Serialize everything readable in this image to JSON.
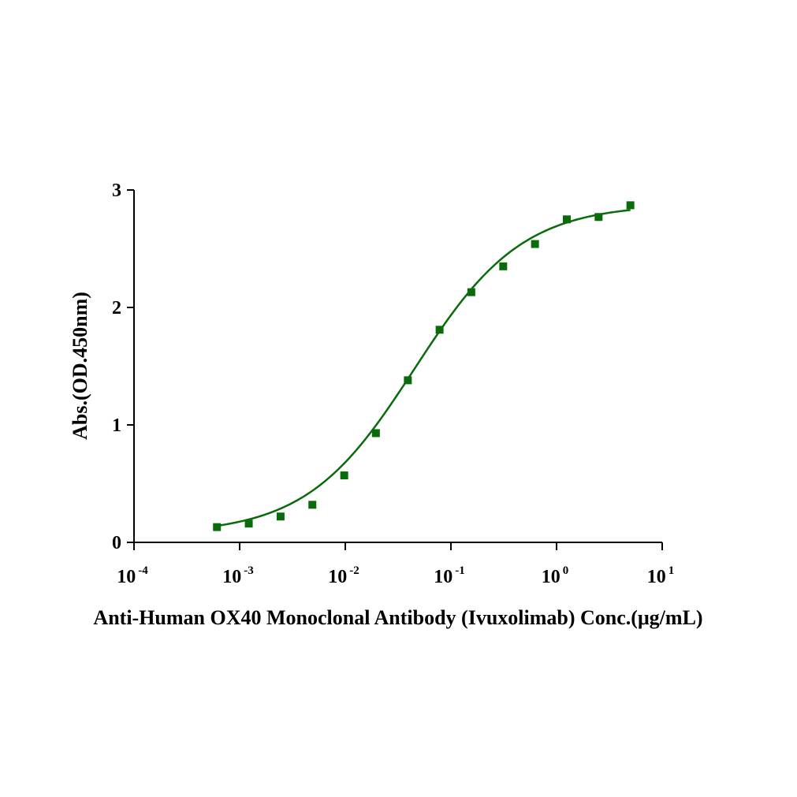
{
  "chart_data": {
    "type": "scatter",
    "xlabel": "Anti-Human OX40 Monoclonal Antibody (Ivuxolimab)  Conc.(μg/mL)",
    "ylabel": "Abs.(OD.450nm)",
    "xscale": "log",
    "xlim": [
      0.0001,
      10
    ],
    "ylim": [
      0,
      3
    ],
    "x_ticks": [
      {
        "base": "10",
        "exp": "-4"
      },
      {
        "base": "10",
        "exp": "-3"
      },
      {
        "base": "10",
        "exp": "-2"
      },
      {
        "base": "10",
        "exp": "-1"
      },
      {
        "base": "10",
        "exp": "0"
      },
      {
        "base": "10",
        "exp": "1"
      }
    ],
    "y_ticks": [
      "0",
      "1",
      "2",
      "3"
    ],
    "grid": false,
    "legend": "none",
    "marker": "square",
    "color": "#0a6b0a",
    "series": [
      {
        "x": [
          0.00061,
          0.00122,
          0.00244,
          0.00488,
          0.00977,
          0.0195,
          0.0391,
          0.0781,
          0.156,
          0.3125,
          0.625,
          1.25,
          2.5,
          5.0
        ],
        "y": [
          0.13,
          0.16,
          0.22,
          0.32,
          0.57,
          0.93,
          1.38,
          1.81,
          2.13,
          2.35,
          2.54,
          2.75,
          2.77,
          2.87
        ]
      }
    ],
    "fit": {
      "model": "4PL",
      "bottom": 0.07,
      "top": 2.88,
      "ec50": 0.045,
      "hill": 0.85
    }
  }
}
